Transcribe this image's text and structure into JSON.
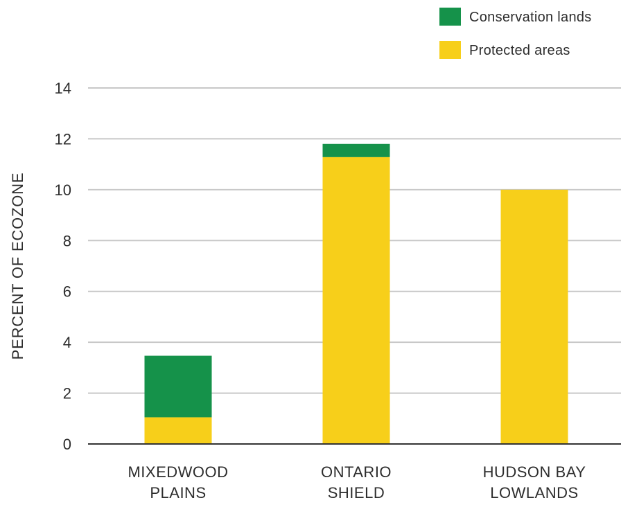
{
  "chart_data": {
    "type": "bar",
    "stacked": true,
    "title": "",
    "xlabel": "",
    "ylabel": "PERCENT OF ECOZONE",
    "categories": [
      "MIXEDWOOD PLAINS",
      "ONTARIO SHIELD",
      "HUDSON BAY LOWLANDS"
    ],
    "category_lines": [
      [
        "MIXEDWOOD",
        "PLAINS"
      ],
      [
        "ONTARIO",
        "SHIELD"
      ],
      [
        "HUDSON BAY",
        "LOWLANDS"
      ]
    ],
    "series": [
      {
        "name": "Protected areas",
        "color": "#f7cf1a",
        "values": [
          1.05,
          11.28,
          10.0
        ]
      },
      {
        "name": "Conservation lands",
        "color": "#15924a",
        "values": [
          2.42,
          0.52,
          0.0
        ]
      }
    ],
    "legend": [
      "Conservation lands",
      "Protected areas"
    ],
    "legend_position": "top-right",
    "ylim": [
      0,
      14
    ],
    "yticks": [
      0,
      2,
      4,
      6,
      8,
      10,
      12,
      14
    ],
    "grid": true,
    "colors": {
      "grid": "#c8c8c8",
      "axis": "#333333",
      "text": "#2d2d2d"
    }
  }
}
